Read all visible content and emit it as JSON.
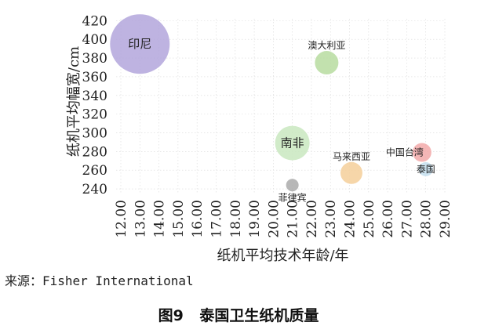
{
  "chart_data": {
    "type": "scatter",
    "subtype": "bubble",
    "xlabel": "纸机平均技术年龄/年",
    "ylabel": "纸机平均幅宽/cm",
    "xlim": [
      12,
      29
    ],
    "ylim": [
      235,
      422
    ],
    "xticks": [
      "12.00",
      "13.00",
      "14.00",
      "15.00",
      "16.00",
      "17.00",
      "18.00",
      "19.00",
      "20.00",
      "21.00",
      "22.00",
      "23.00",
      "24.00",
      "25.00",
      "26.00",
      "27.00",
      "28.00",
      "29.00"
    ],
    "yticks": [
      "240",
      "260",
      "280",
      "300",
      "320",
      "340",
      "360",
      "380",
      "400",
      "420"
    ],
    "grid": true,
    "points": [
      {
        "name": "印尼",
        "x": 13.0,
        "y": 395,
        "size": 38,
        "color": "#b3a6dc",
        "label_position": "center"
      },
      {
        "name": "澳大利亚",
        "x": 22.8,
        "y": 375,
        "size": 15,
        "color": "#b7dca0",
        "label_position": "above"
      },
      {
        "name": "南非",
        "x": 21.0,
        "y": 289,
        "size": 22,
        "color": "#c9e8bf",
        "label_position": "center"
      },
      {
        "name": "菲律宾",
        "x": 21.0,
        "y": 244,
        "size": 8,
        "color": "#aaaaaa",
        "label_position": "below"
      },
      {
        "name": "马来西亚",
        "x": 24.1,
        "y": 257,
        "size": 14,
        "color": "#f5cf9a",
        "label_position": "above"
      },
      {
        "name": "中国台湾",
        "x": 27.8,
        "y": 279,
        "size": 12,
        "color": "#f2a9a9",
        "label_position": "left"
      },
      {
        "name": "泰国",
        "x": 28.0,
        "y": 261,
        "size": 9,
        "color": "#c4dfef",
        "label_position": "center"
      }
    ]
  },
  "source_text": "来源：Fisher International",
  "caption": "图9 泰国卫生纸机质量"
}
